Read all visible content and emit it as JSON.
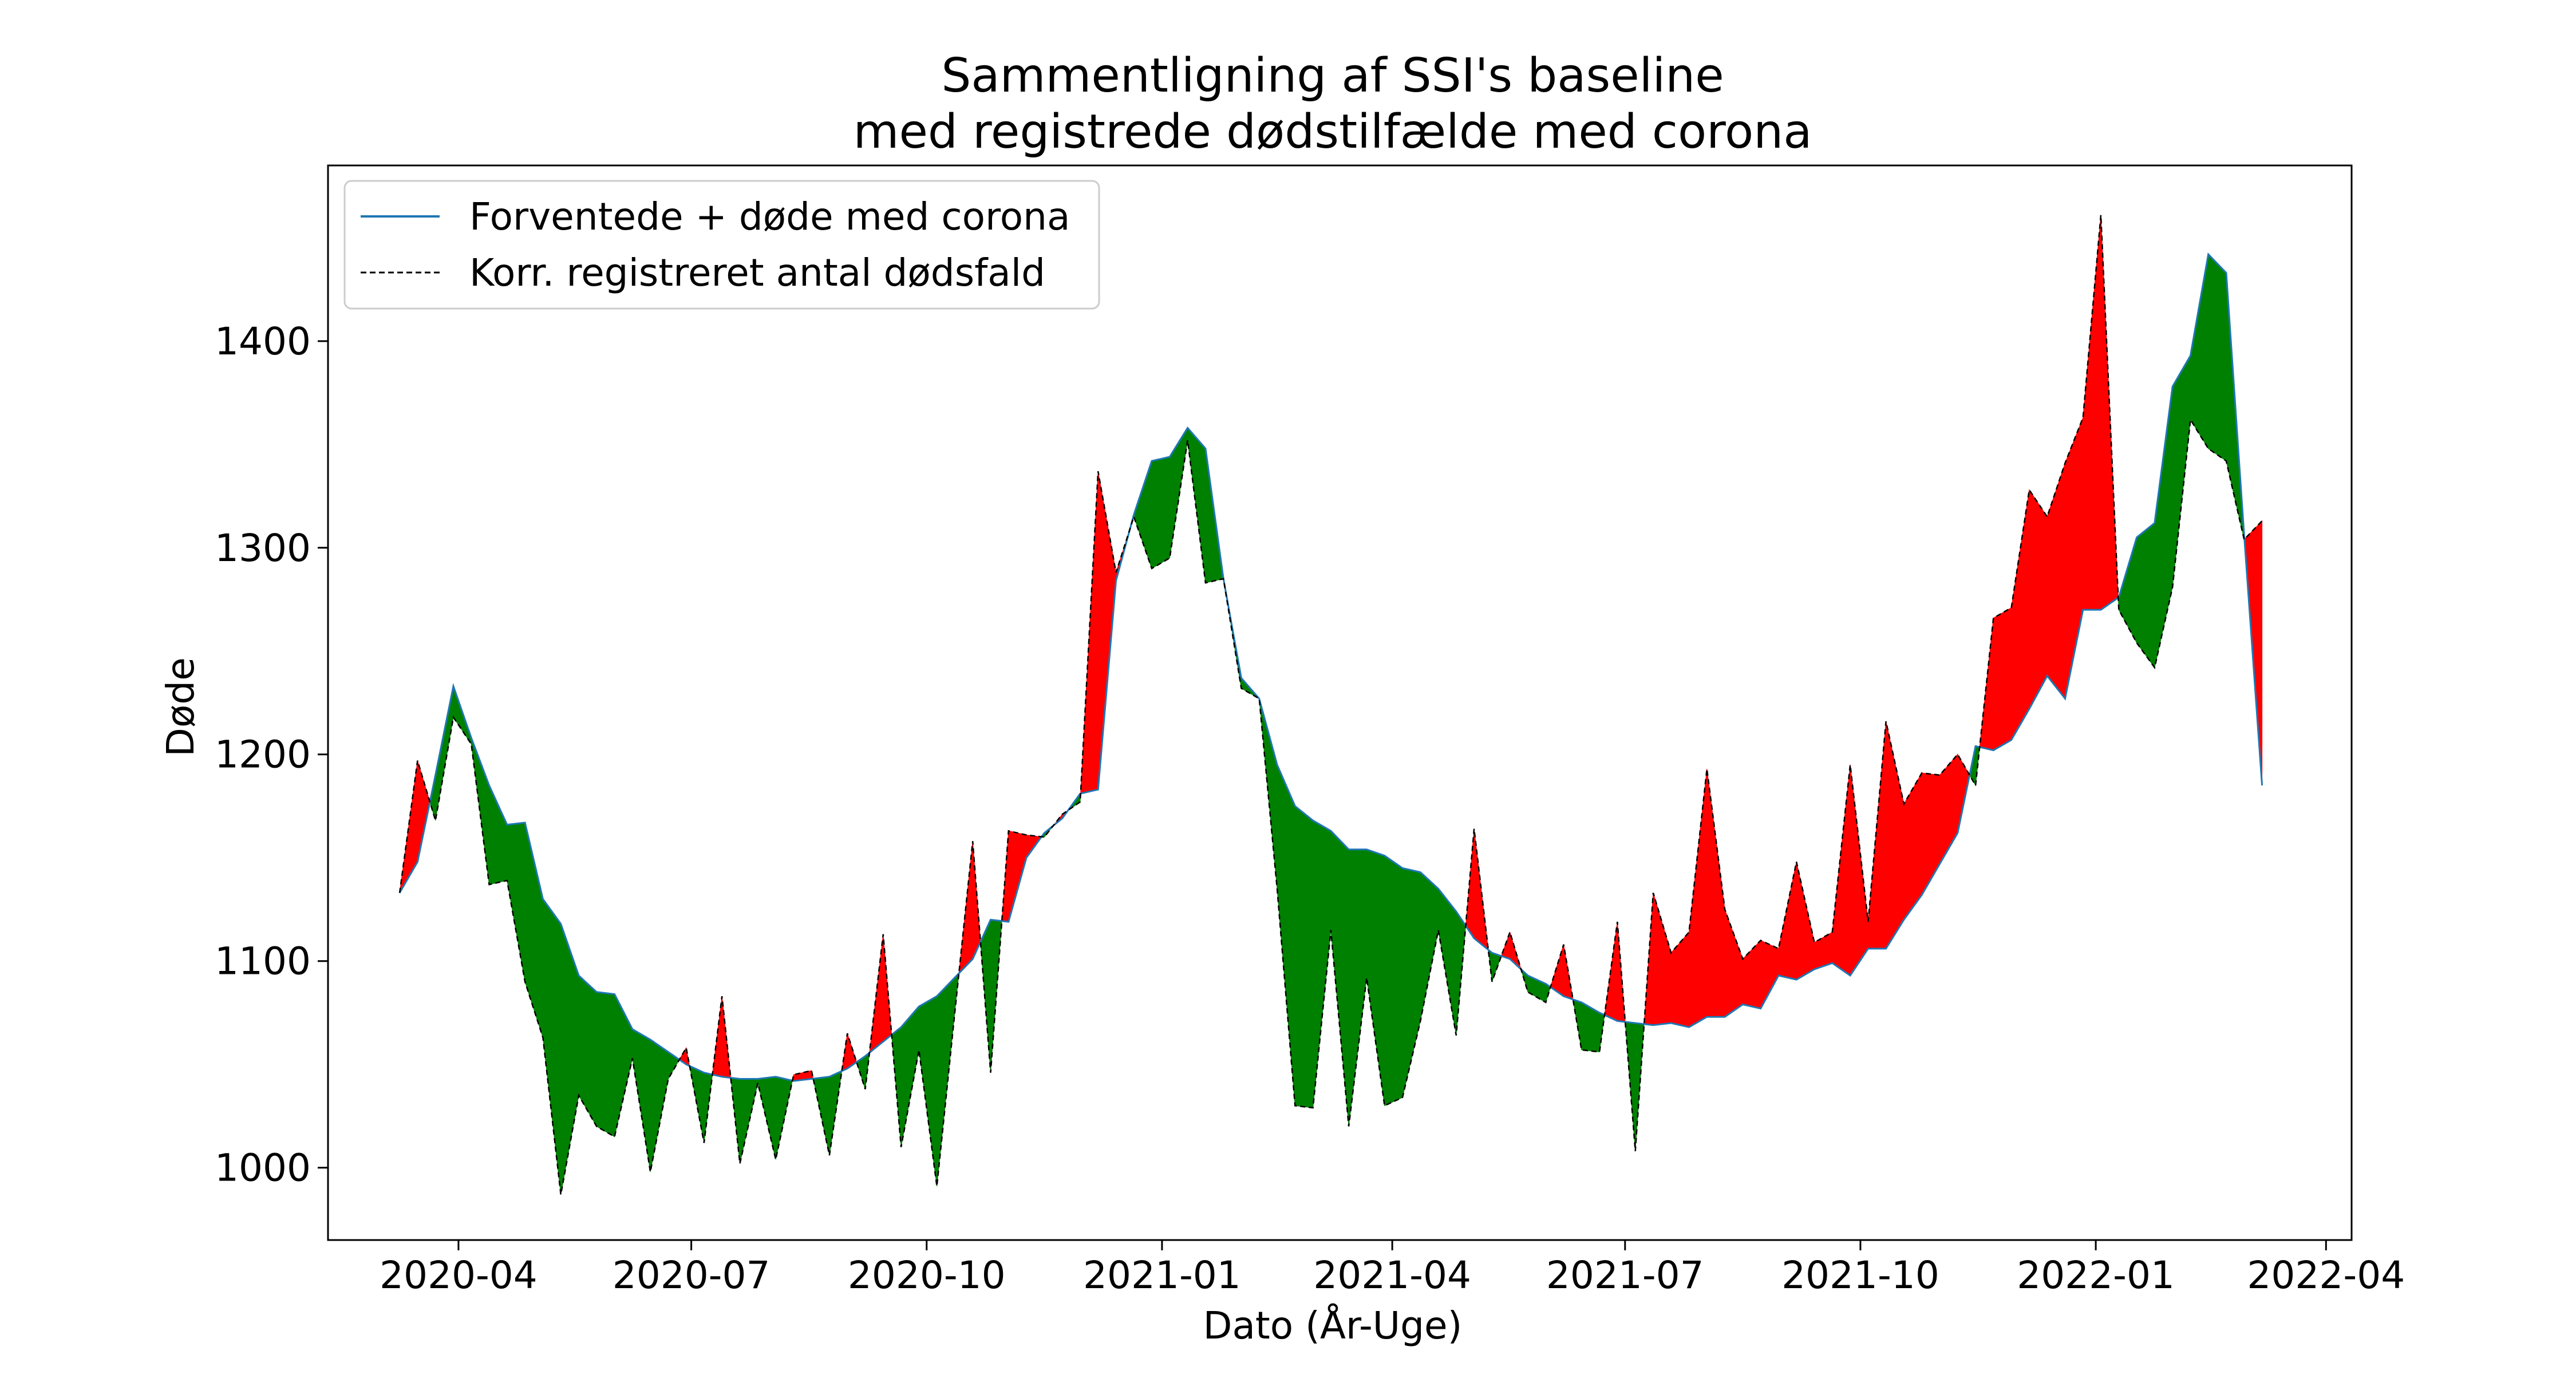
{
  "chart_data": {
    "type": "line",
    "title_line1": "Sammentligning af SSI's baseline",
    "title_line2": "med registrede dødstilfælde med corona",
    "xlabel": "Dato (År-Uge)",
    "ylabel": "Døde",
    "xlim": [
      "2020-02-10",
      "2022-04-11"
    ],
    "ylim": [
      965,
      1485
    ],
    "x_ticks": [
      "2020-04",
      "2020-07",
      "2020-10",
      "2021-01",
      "2021-04",
      "2021-07",
      "2021-10",
      "2022-01",
      "2022-04"
    ],
    "y_ticks": [
      1000,
      1100,
      1200,
      1300,
      1400
    ],
    "grid": false,
    "legend_position": "top-left",
    "fill_colors": {
      "above": "#ff0000",
      "below": "#008000"
    },
    "line_color": "#1f77b4",
    "series": [
      {
        "name": "Forventede + døde med corona",
        "style": "solid"
      },
      {
        "name": "Korr. registreret antal dødsfald",
        "style": "dashed"
      }
    ],
    "x": [
      "2020-03-09",
      "2020-03-16",
      "2020-03-23",
      "2020-03-30",
      "2020-04-06",
      "2020-04-13",
      "2020-04-20",
      "2020-04-27",
      "2020-05-04",
      "2020-05-11",
      "2020-05-18",
      "2020-05-25",
      "2020-06-01",
      "2020-06-08",
      "2020-06-15",
      "2020-06-22",
      "2020-06-29",
      "2020-07-06",
      "2020-07-13",
      "2020-07-20",
      "2020-07-27",
      "2020-08-03",
      "2020-08-10",
      "2020-08-17",
      "2020-08-24",
      "2020-08-31",
      "2020-09-07",
      "2020-09-14",
      "2020-09-21",
      "2020-09-28",
      "2020-10-05",
      "2020-10-12",
      "2020-10-19",
      "2020-10-26",
      "2020-11-02",
      "2020-11-09",
      "2020-11-16",
      "2020-11-23",
      "2020-11-30",
      "2020-12-07",
      "2020-12-14",
      "2020-12-21",
      "2020-12-28",
      "2021-01-04",
      "2021-01-11",
      "2021-01-18",
      "2021-01-25",
      "2021-02-01",
      "2021-02-08",
      "2021-02-15",
      "2021-02-22",
      "2021-03-01",
      "2021-03-08",
      "2021-03-15",
      "2021-03-22",
      "2021-03-29",
      "2021-04-05",
      "2021-04-12",
      "2021-04-19",
      "2021-04-26",
      "2021-05-03",
      "2021-05-10",
      "2021-05-17",
      "2021-05-24",
      "2021-05-31",
      "2021-06-07",
      "2021-06-14",
      "2021-06-21",
      "2021-06-28",
      "2021-07-05",
      "2021-07-12",
      "2021-07-19",
      "2021-07-26",
      "2021-08-02",
      "2021-08-09",
      "2021-08-16",
      "2021-08-23",
      "2021-08-30",
      "2021-09-06",
      "2021-09-13",
      "2021-09-20",
      "2021-09-27",
      "2021-10-04",
      "2021-10-11",
      "2021-10-18",
      "2021-10-25",
      "2021-11-01",
      "2021-11-08",
      "2021-11-15",
      "2021-11-22",
      "2021-11-29",
      "2021-12-06",
      "2021-12-13",
      "2021-12-20",
      "2021-12-27",
      "2022-01-03",
      "2022-01-10",
      "2022-01-17",
      "2022-01-24",
      "2022-01-31",
      "2022-02-07",
      "2022-02-14",
      "2022-02-21",
      "2022-02-28",
      "2022-03-07"
    ],
    "expected": [
      1133,
      1148,
      1190,
      1233,
      1208,
      1185,
      1166,
      1167,
      1130,
      1118,
      1093,
      1085,
      1084,
      1067,
      1062,
      1056,
      1050,
      1046,
      1044,
      1043,
      1043,
      1044,
      1042,
      1043,
      1044,
      1048,
      1054,
      1061,
      1068,
      1078,
      1083,
      1092,
      1101,
      1120,
      1119,
      1150,
      1162,
      1169,
      1181,
      1183,
      1284,
      1316,
      1342,
      1344,
      1358,
      1348,
      1285,
      1237,
      1227,
      1195,
      1175,
      1168,
      1163,
      1154,
      1154,
      1151,
      1145,
      1143,
      1135,
      1124,
      1111,
      1104,
      1101,
      1093,
      1089,
      1083,
      1080,
      1075,
      1071,
      1070,
      1069,
      1070,
      1068,
      1073,
      1073,
      1079,
      1077,
      1093,
      1091,
      1096,
      1099,
      1093,
      1106,
      1106,
      1120,
      1132,
      1147,
      1162,
      1204,
      1202,
      1207,
      1222,
      1238,
      1227,
      1270,
      1270,
      1276,
      1305,
      1312,
      1378,
      1393,
      1442,
      1433,
      1306,
      1185
    ],
    "registered": [
      1133,
      1197,
      1168,
      1218,
      1205,
      1137,
      1139,
      1090,
      1063,
      987,
      1035,
      1020,
      1015,
      1053,
      998,
      1043,
      1058,
      1012,
      1083,
      1002,
      1041,
      1004,
      1045,
      1047,
      1006,
      1065,
      1038,
      1113,
      1010,
      1057,
      991,
      1075,
      1158,
      1046,
      1163,
      1161,
      1160,
      1171,
      1177,
      1337,
      1288,
      1315,
      1290,
      1295,
      1352,
      1283,
      1285,
      1232,
      1227,
      1135,
      1030,
      1029,
      1115,
      1020,
      1092,
      1030,
      1034,
      1071,
      1115,
      1064,
      1164,
      1090,
      1114,
      1085,
      1080,
      1108,
      1057,
      1056,
      1119,
      1008,
      1133,
      1104,
      1114,
      1193,
      1125,
      1101,
      1110,
      1106,
      1148,
      1109,
      1114,
      1195,
      1119,
      1216,
      1176,
      1191,
      1190,
      1200,
      1185,
      1266,
      1271,
      1328,
      1315,
      1341,
      1363,
      1461,
      1270,
      1254,
      1242,
      1281,
      1362,
      1348,
      1342,
      1304,
      1313
    ]
  }
}
